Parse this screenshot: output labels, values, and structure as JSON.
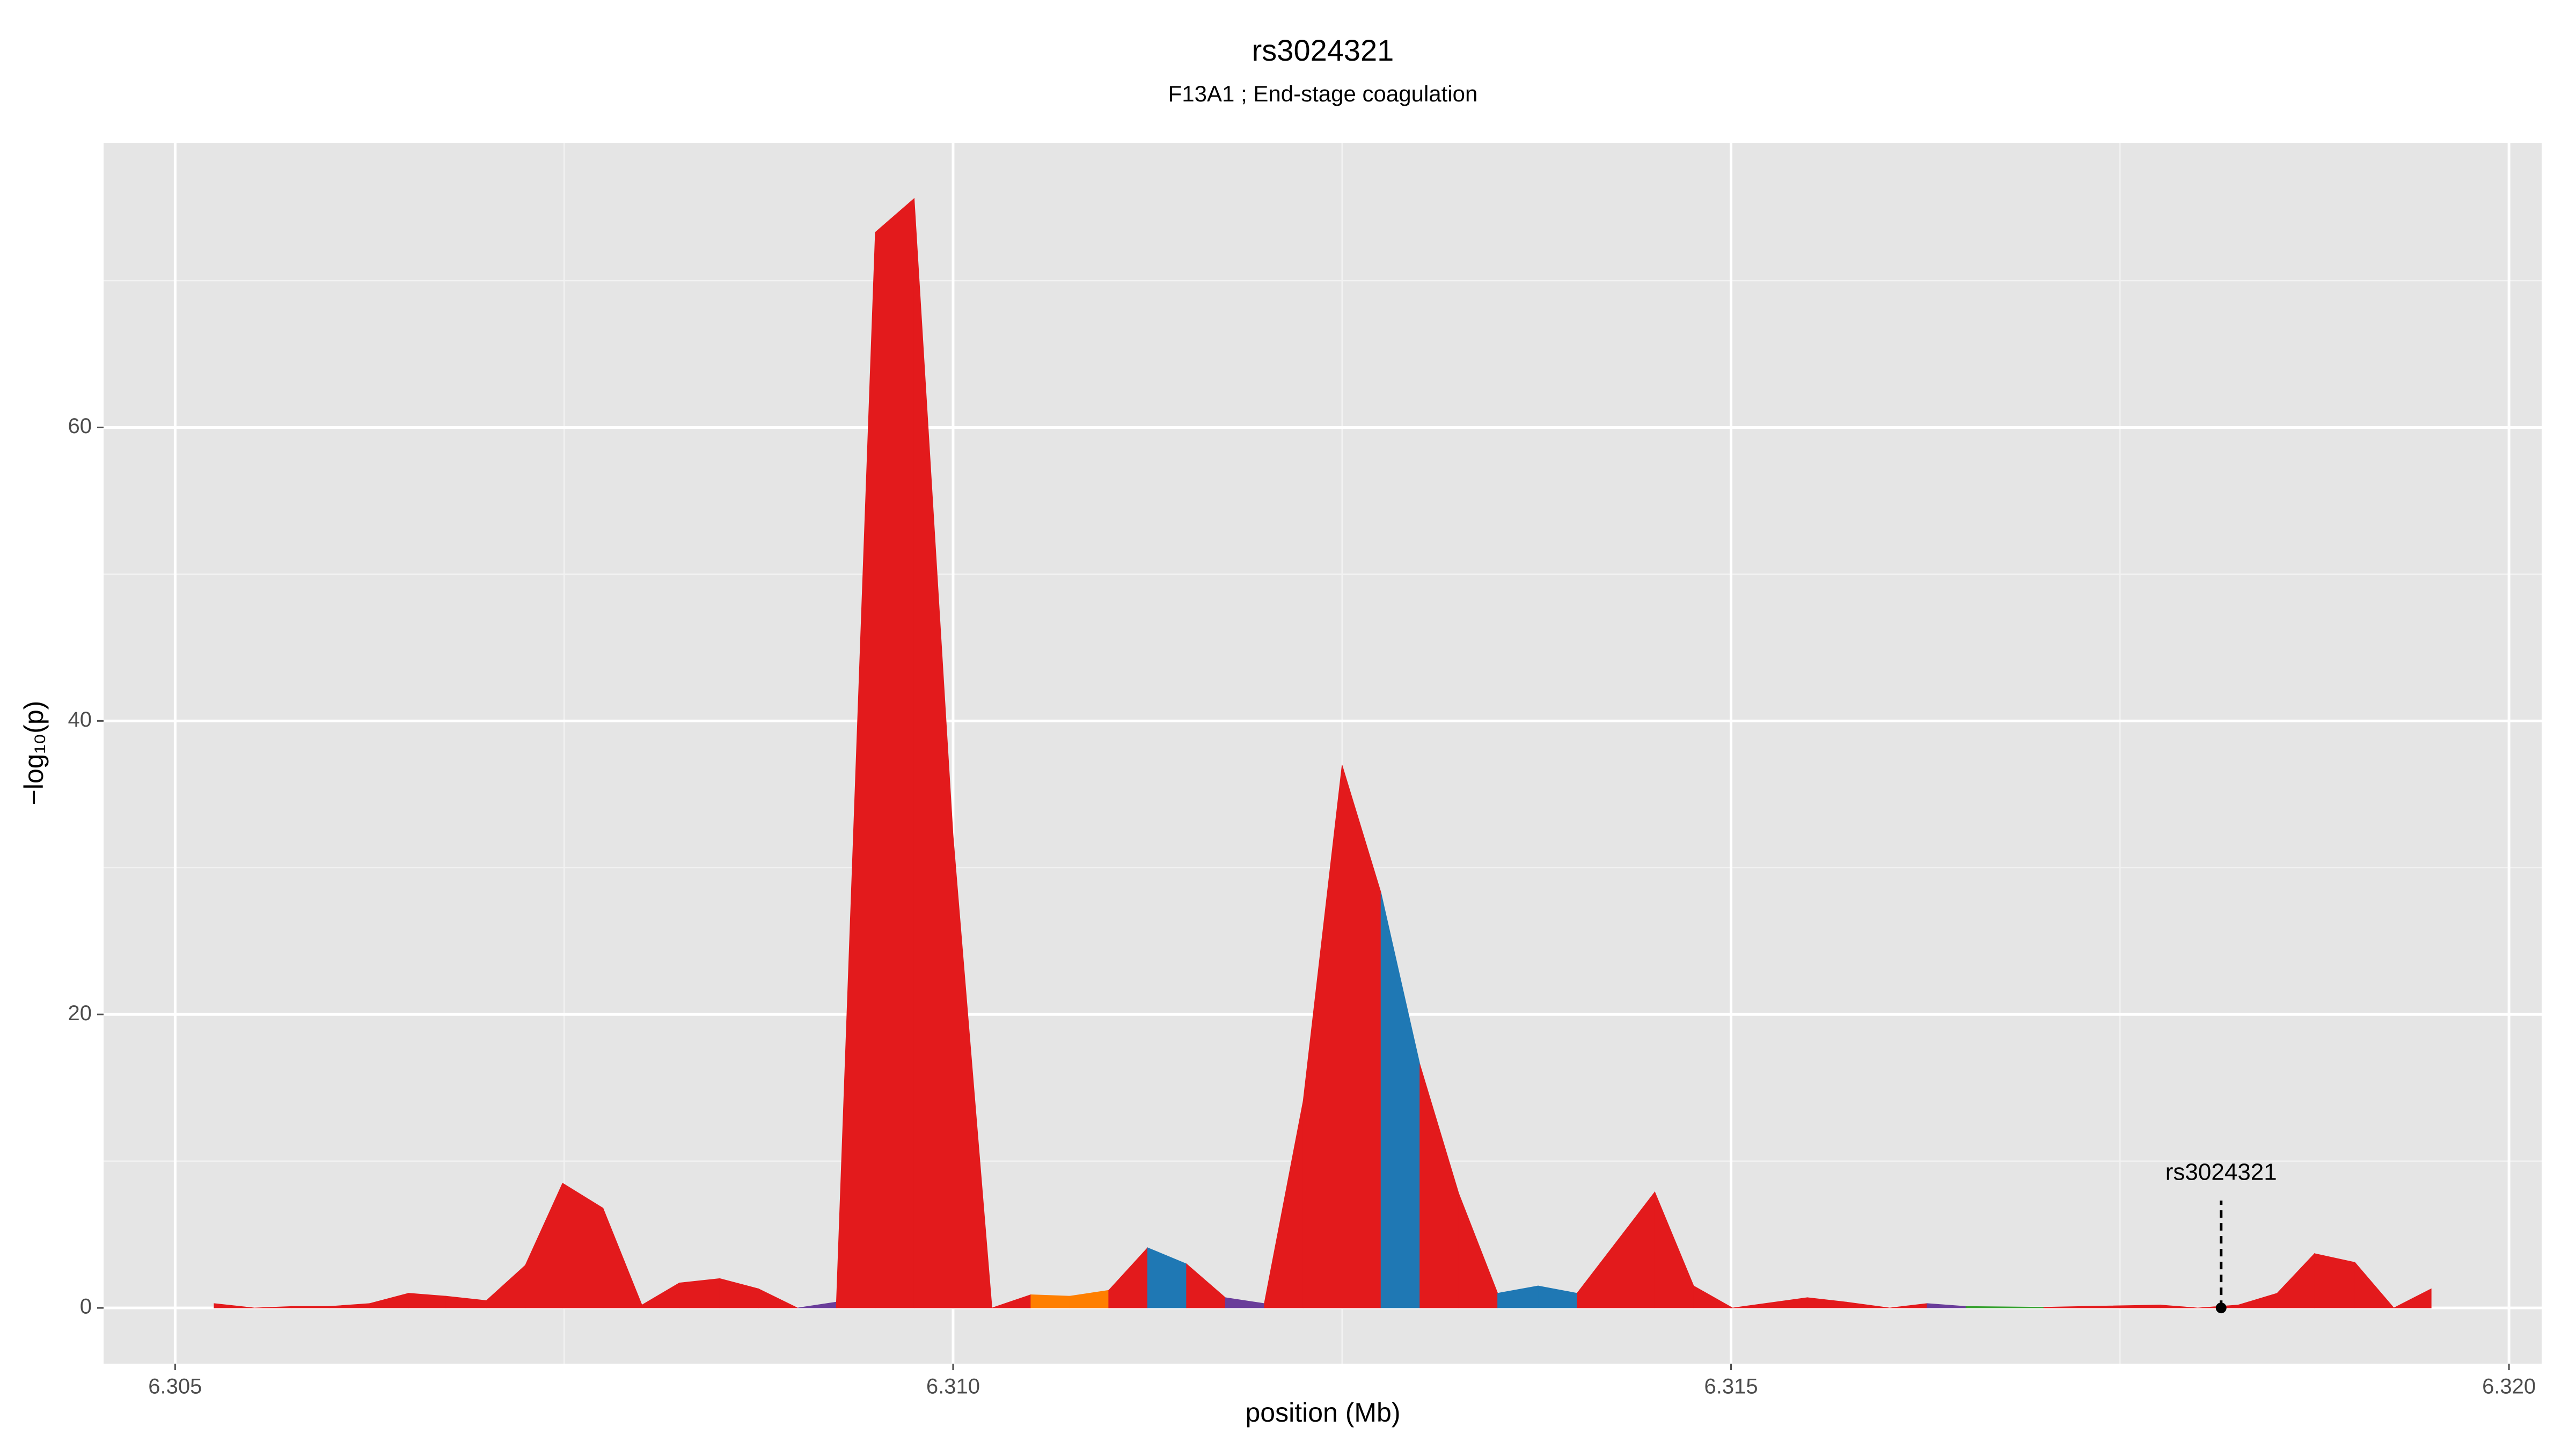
{
  "chart_data": {
    "type": "area",
    "title": "rs3024321",
    "subtitle": "F13A1 ; End-stage coagulation",
    "x_label": "position (Mb)",
    "y_label": "−log₁₀(p)",
    "x": [
      6.30525,
      6.30551,
      6.30575,
      6.30599,
      6.30625,
      6.3065,
      6.30674,
      6.307,
      6.30725,
      6.30749,
      6.30775,
      6.308,
      6.30824,
      6.3085,
      6.30875,
      6.309,
      6.30925,
      6.3095,
      6.30975,
      6.31,
      6.31025,
      6.3105,
      6.31075,
      6.311,
      6.31125,
      6.3115,
      6.31175,
      6.312,
      6.31225,
      6.3125,
      6.31275,
      6.313,
      6.31325,
      6.3135,
      6.31376,
      6.31401,
      6.31451,
      6.31476,
      6.31501,
      6.31549,
      6.31574,
      6.31602,
      6.31626,
      6.31651,
      6.31701,
      6.31725,
      6.31776,
      6.318,
      6.31826,
      6.31851,
      6.31875,
      6.31901,
      6.31926,
      6.3195
    ],
    "values": [
      0.3,
      0,
      0.1,
      0.1,
      0.3,
      1.0,
      0.8,
      0.5,
      2.9,
      8.5,
      6.8,
      0.2,
      1.7,
      2.0,
      1.3,
      0,
      0.4,
      73.3,
      75.6,
      32.2,
      0,
      0.9,
      0.8,
      1.2,
      4.1,
      3.0,
      0.7,
      0.3,
      14.1,
      37.0,
      28.3,
      16.6,
      7.8,
      1.0,
      1.5,
      1.0,
      7.9,
      1.5,
      0,
      0.7,
      0.4,
      0,
      0.3,
      0.1,
      0.05,
      0.1,
      0.2,
      0,
      0.2,
      1.0,
      3.7,
      3.1,
      0,
      1.3
    ],
    "segment_colors": [
      "#e31a1c",
      "#e31a1c",
      "#e31a1c",
      "#e31a1c",
      "#e31a1c",
      "#e31a1c",
      "#e31a1c",
      "#e31a1c",
      "#e31a1c",
      "#e31a1c",
      "#e31a1c",
      "#e31a1c",
      "#e31a1c",
      "#e31a1c",
      "#e31a1c",
      "#6a3d9a",
      "#e31a1c",
      "#e31a1c",
      "#e31a1c",
      "#e31a1c",
      "#e31a1c",
      "#ff7f00",
      "#ff7f00",
      "#e31a1c",
      "#1f78b4",
      "#e31a1c",
      "#6a3d9a",
      "#e31a1c",
      "#e31a1c",
      "#e31a1c",
      "#1f78b4",
      "#e31a1c",
      "#e31a1c",
      "#1f78b4",
      "#1f78b4",
      "#e31a1c",
      "#e31a1c",
      "#e31a1c",
      "#e31a1c",
      "#e31a1c",
      "#e31a1c",
      "#e31a1c",
      "#6a3d9a",
      "#33a02c",
      "#e31a1c",
      "#e31a1c",
      "#e31a1c",
      "#e31a1c",
      "#e31a1c",
      "#e31a1c",
      "#e31a1c",
      "#e31a1c",
      "#e31a1c"
    ],
    "xlim": [
      6.30454,
      6.32021
    ],
    "ylim": [
      -3.8,
      79.4
    ],
    "xticks": [
      6.305,
      {
        "value": 6.31,
        "label": "6.310"
      },
      6.315,
      {
        "value": 6.32,
        "label": "6.320"
      }
    ],
    "yticks": [
      0,
      20,
      40,
      60
    ],
    "minor_xticks": [
      6.3075,
      6.3125,
      6.3175
    ],
    "minor_yticks": [
      10,
      30,
      50,
      70
    ],
    "grid": true,
    "annotation": {
      "label": "rs3024321",
      "x": 6.31815,
      "y": 0
    }
  }
}
